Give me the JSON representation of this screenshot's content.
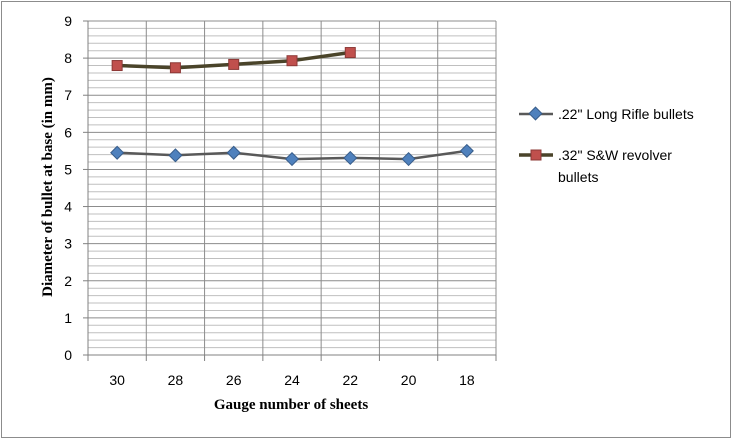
{
  "chart_data": {
    "type": "line",
    "categories": [
      "30",
      "28",
      "26",
      "24",
      "22",
      "20",
      "18"
    ],
    "series": [
      {
        "name": ".22\" Long Rifle bullets",
        "values": [
          5.45,
          5.38,
          5.45,
          5.28,
          5.31,
          5.28,
          5.5
        ],
        "color": "#4f81bd",
        "line_color": "#595959",
        "marker": "diamond"
      },
      {
        "name": ".32\" S&W revolver bullets",
        "name_lines": [
          ".32\" S&W revolver",
          "bullets"
        ],
        "values": [
          7.8,
          7.74,
          7.83,
          7.93,
          8.15,
          null,
          null
        ],
        "color": "#c0504d",
        "line_color": "#4a442a",
        "marker": "square"
      }
    ],
    "y_ticks": [
      "0",
      "1",
      "2",
      "3",
      "4",
      "5",
      "6",
      "7",
      "8",
      "9"
    ],
    "ylim": [
      0,
      9
    ],
    "xlabel": "Gauge number of sheets",
    "ylabel": "Diameter of bullet  at base (in mm)",
    "grid": true,
    "minor_grid_step": 0.2,
    "legend_position": "right"
  }
}
